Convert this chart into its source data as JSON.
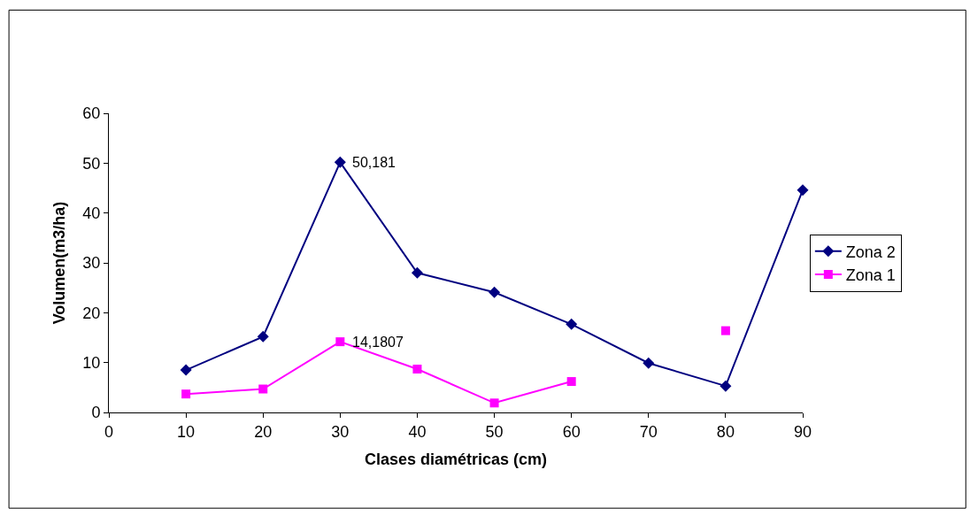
{
  "chart_data": {
    "type": "line",
    "xlabel": "Clases diamétricas (cm)",
    "ylabel": "Volumen(m3/ha)",
    "x": [
      10,
      20,
      30,
      40,
      50,
      60,
      70,
      80,
      90
    ],
    "series": [
      {
        "name": "Zona 2",
        "color": "#000080",
        "marker": "diamond",
        "values": [
          8.5,
          15.2,
          50.181,
          28.0,
          24.1,
          17.7,
          9.9,
          5.3,
          44.6
        ]
      },
      {
        "name": "Zona 1",
        "color": "#ff00ff",
        "marker": "square",
        "values": [
          3.7,
          4.7,
          14.1807,
          8.7,
          1.9,
          6.2,
          null,
          16.4,
          null
        ]
      }
    ],
    "xlim": [
      0,
      90
    ],
    "xticks": [
      0,
      10,
      20,
      30,
      40,
      50,
      60,
      70,
      80,
      90
    ],
    "ylim": [
      0,
      60
    ],
    "yticks": [
      0,
      10,
      20,
      30,
      40,
      50,
      60
    ],
    "annotations": [
      {
        "text": "50,181",
        "x": 30,
        "y": 50.181
      },
      {
        "text": "14,1807",
        "x": 30,
        "y": 14.1807
      }
    ],
    "legend": "right"
  }
}
